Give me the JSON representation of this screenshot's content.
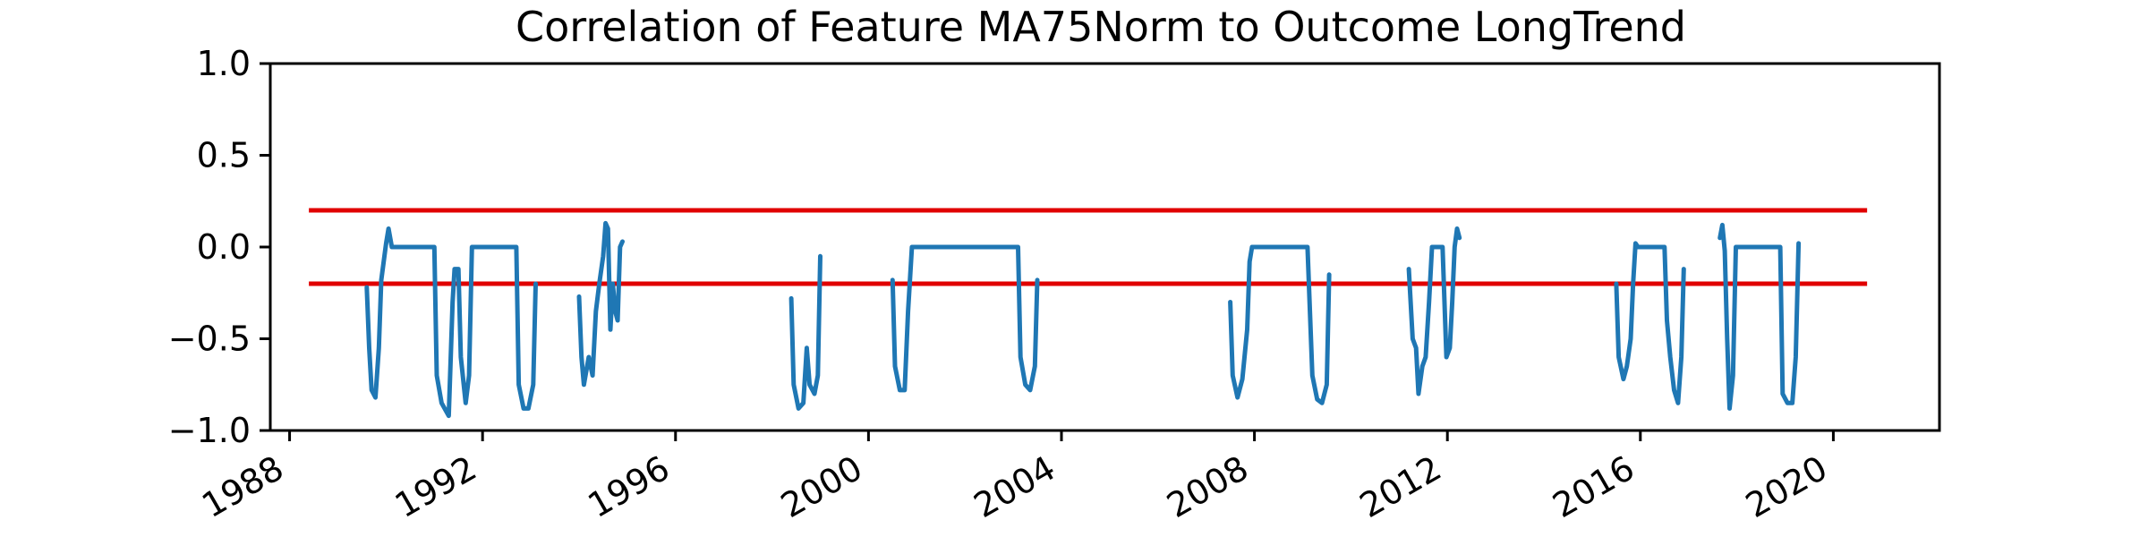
{
  "chart_data": {
    "type": "line",
    "title": "Correlation of Feature MA75Norm to Outcome LongTrend",
    "xlabel": "",
    "ylabel": "",
    "xlim": [
      1987.6,
      2022.2
    ],
    "ylim": [
      -1.0,
      1.0
    ],
    "x_ticks": [
      1988,
      1992,
      1996,
      2000,
      2004,
      2008,
      2012,
      2016,
      2020
    ],
    "y_ticks": [
      -1.0,
      -0.5,
      0.0,
      0.5,
      1.0
    ],
    "x_tick_labels": [
      "1988",
      "1992",
      "1996",
      "2000",
      "2004",
      "2008",
      "2012",
      "2016",
      "2020"
    ],
    "y_tick_labels": [
      "−1.0",
      "−0.5",
      "0.0",
      "0.5",
      "1.0"
    ],
    "grid": false,
    "colors": {
      "series": "#1f77b4",
      "threshold": "#e00000"
    },
    "thresholds": [
      {
        "y": 0.2,
        "x": [
          1988.4,
          2020.7
        ]
      },
      {
        "y": -0.2,
        "x": [
          1988.4,
          2020.7
        ]
      }
    ],
    "series": [
      {
        "segments": [
          [
            [
              1989.6,
              -0.22
            ],
            [
              1989.65,
              -0.55
            ],
            [
              1989.7,
              -0.78
            ],
            [
              1989.78,
              -0.82
            ],
            [
              1989.85,
              -0.55
            ],
            [
              1989.9,
              -0.18
            ],
            [
              1990.0,
              0.02
            ],
            [
              1990.05,
              0.1
            ],
            [
              1990.12,
              0.0
            ],
            [
              1991.0,
              0.0
            ],
            [
              1991.05,
              -0.7
            ],
            [
              1991.15,
              -0.85
            ],
            [
              1991.3,
              -0.92
            ],
            [
              1991.38,
              -0.3
            ],
            [
              1991.42,
              -0.12
            ],
            [
              1991.5,
              -0.12
            ],
            [
              1991.55,
              -0.6
            ],
            [
              1991.65,
              -0.85
            ],
            [
              1991.72,
              -0.7
            ],
            [
              1991.78,
              0.0
            ],
            [
              1992.7,
              0.0
            ],
            [
              1992.75,
              -0.75
            ],
            [
              1992.85,
              -0.88
            ],
            [
              1992.95,
              -0.88
            ],
            [
              1993.05,
              -0.75
            ],
            [
              1993.1,
              -0.2
            ]
          ],
          [
            [
              1994.0,
              -0.27
            ],
            [
              1994.05,
              -0.6
            ],
            [
              1994.1,
              -0.75
            ],
            [
              1994.2,
              -0.6
            ],
            [
              1994.28,
              -0.7
            ],
            [
              1994.35,
              -0.35
            ],
            [
              1994.42,
              -0.2
            ],
            [
              1994.5,
              -0.05
            ],
            [
              1994.55,
              0.13
            ],
            [
              1994.6,
              0.1
            ],
            [
              1994.65,
              -0.45
            ],
            [
              1994.7,
              -0.2
            ],
            [
              1994.75,
              -0.35
            ],
            [
              1994.8,
              -0.4
            ],
            [
              1994.85,
              0.0
            ],
            [
              1994.9,
              0.03
            ]
          ],
          [
            [
              1998.4,
              -0.28
            ],
            [
              1998.45,
              -0.75
            ],
            [
              1998.55,
              -0.88
            ],
            [
              1998.65,
              -0.85
            ],
            [
              1998.72,
              -0.55
            ],
            [
              1998.78,
              -0.75
            ],
            [
              1998.88,
              -0.8
            ],
            [
              1998.95,
              -0.7
            ],
            [
              1999.0,
              -0.05
            ]
          ],
          [
            [
              2000.5,
              -0.18
            ],
            [
              2000.55,
              -0.65
            ],
            [
              2000.65,
              -0.78
            ],
            [
              2000.75,
              -0.78
            ],
            [
              2000.82,
              -0.35
            ],
            [
              2000.9,
              0.0
            ],
            [
              2003.1,
              0.0
            ],
            [
              2003.15,
              -0.6
            ],
            [
              2003.25,
              -0.75
            ],
            [
              2003.35,
              -0.78
            ],
            [
              2003.45,
              -0.65
            ],
            [
              2003.5,
              -0.18
            ]
          ],
          [
            [
              2007.5,
              -0.3
            ],
            [
              2007.55,
              -0.7
            ],
            [
              2007.65,
              -0.82
            ],
            [
              2007.75,
              -0.72
            ],
            [
              2007.85,
              -0.45
            ],
            [
              2007.9,
              -0.08
            ],
            [
              2007.95,
              0.0
            ],
            [
              2009.1,
              0.0
            ],
            [
              2009.2,
              -0.7
            ],
            [
              2009.3,
              -0.83
            ],
            [
              2009.4,
              -0.85
            ],
            [
              2009.5,
              -0.75
            ],
            [
              2009.55,
              -0.15
            ]
          ],
          [
            [
              2011.2,
              -0.12
            ],
            [
              2011.28,
              -0.5
            ],
            [
              2011.35,
              -0.55
            ],
            [
              2011.4,
              -0.8
            ],
            [
              2011.48,
              -0.65
            ],
            [
              2011.55,
              -0.6
            ],
            [
              2011.62,
              -0.3
            ],
            [
              2011.68,
              0.0
            ],
            [
              2011.9,
              0.0
            ],
            [
              2011.98,
              -0.6
            ],
            [
              2012.05,
              -0.55
            ],
            [
              2012.1,
              -0.3
            ],
            [
              2012.15,
              0.0
            ],
            [
              2012.2,
              0.1
            ],
            [
              2012.25,
              0.05
            ]
          ],
          [
            [
              2015.5,
              -0.2
            ],
            [
              2015.55,
              -0.6
            ],
            [
              2015.65,
              -0.72
            ],
            [
              2015.72,
              -0.65
            ],
            [
              2015.8,
              -0.5
            ],
            [
              2015.85,
              -0.2
            ],
            [
              2015.9,
              0.02
            ],
            [
              2015.95,
              0.0
            ],
            [
              2016.5,
              0.0
            ],
            [
              2016.55,
              -0.4
            ],
            [
              2016.62,
              -0.6
            ],
            [
              2016.7,
              -0.78
            ],
            [
              2016.78,
              -0.85
            ],
            [
              2016.85,
              -0.6
            ],
            [
              2016.9,
              -0.12
            ]
          ],
          [
            [
              2017.65,
              0.05
            ],
            [
              2017.7,
              0.12
            ],
            [
              2017.75,
              -0.02
            ],
            [
              2017.8,
              -0.5
            ],
            [
              2017.85,
              -0.88
            ],
            [
              2017.92,
              -0.7
            ],
            [
              2017.98,
              0.0
            ],
            [
              2018.9,
              0.0
            ],
            [
              2018.95,
              -0.8
            ],
            [
              2019.05,
              -0.85
            ],
            [
              2019.15,
              -0.85
            ],
            [
              2019.22,
              -0.6
            ],
            [
              2019.28,
              0.02
            ]
          ]
        ]
      }
    ]
  }
}
